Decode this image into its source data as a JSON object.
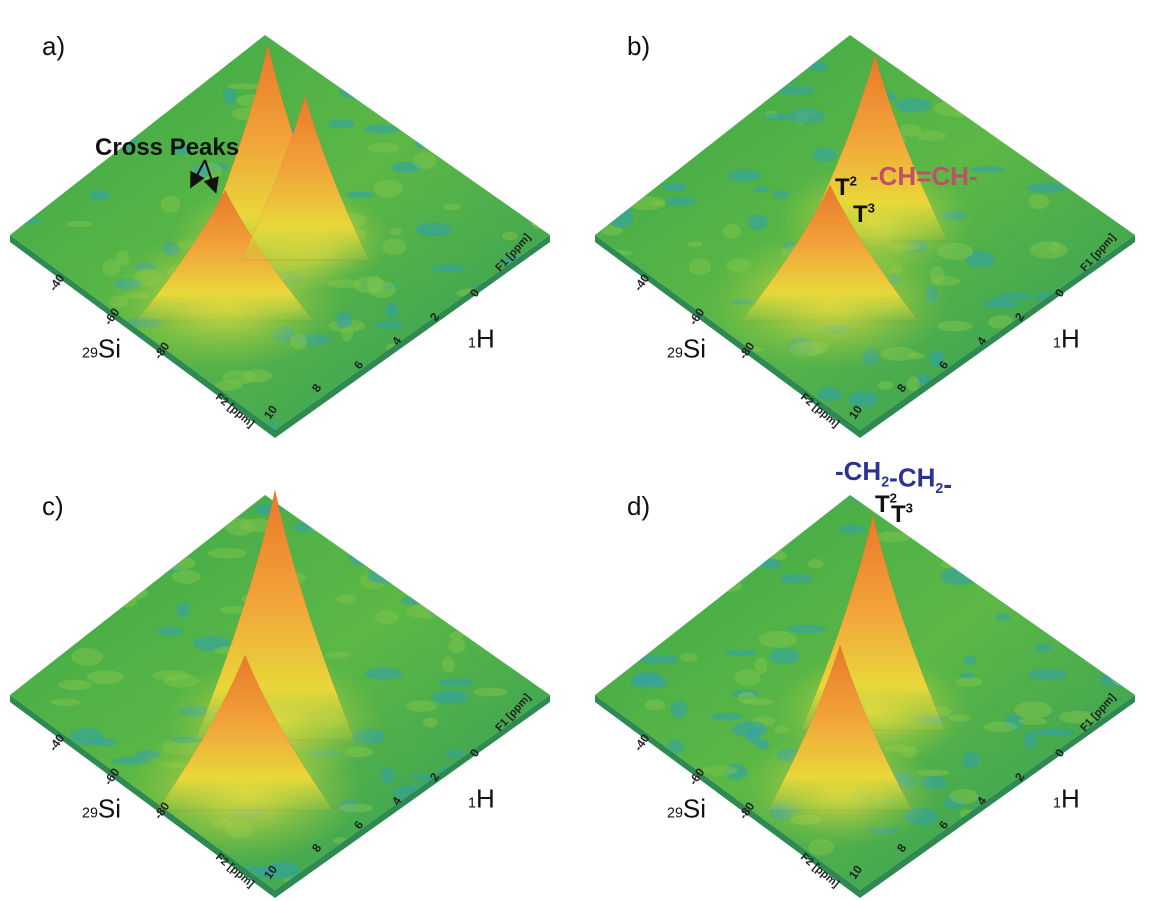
{
  "panels": [
    {
      "label": "a)",
      "si_ticks": [
        "-40",
        "-60",
        "-80"
      ],
      "h_ticks": [
        "10",
        "8",
        "6",
        "4",
        "2",
        "0"
      ],
      "f1": "F1 [ppm]",
      "f2": "F2 [ppm]",
      "si_axis": [
        {
          "sup": "29"
        },
        {
          "text": "Si"
        }
      ],
      "h_axis": [
        {
          "sup": "1"
        },
        {
          "text": "H"
        }
      ],
      "annotations": [
        [
          {
            "text": "Cross Peaks"
          }
        ]
      ]
    },
    {
      "label": "b)",
      "si_ticks": [
        "-40",
        "-60",
        "-80"
      ],
      "h_ticks": [
        "10",
        "8",
        "6",
        "4",
        "2",
        "0"
      ],
      "f1": "F1 [ppm]",
      "f2": "F2 [ppm]",
      "si_axis": [
        {
          "sup": "29"
        },
        {
          "text": "Si"
        }
      ],
      "h_axis": [
        {
          "sup": "1"
        },
        {
          "text": "H"
        }
      ],
      "annotations": [
        [
          {
            "text": "T"
          },
          {
            "sup": "2"
          }
        ],
        [
          {
            "text": "T"
          },
          {
            "sup": "3"
          }
        ],
        [
          {
            "text": "-CH=CH-"
          }
        ]
      ]
    },
    {
      "label": "c)",
      "si_ticks": [
        "-40",
        "-60",
        "-80"
      ],
      "h_ticks": [
        "10",
        "8",
        "6",
        "4",
        "2",
        "0"
      ],
      "f1": "F1 [ppm]",
      "f2": "F2 [ppm]",
      "si_axis": [
        {
          "sup": "29"
        },
        {
          "text": "Si"
        }
      ],
      "h_axis": [
        {
          "sup": "1"
        },
        {
          "text": "H"
        }
      ],
      "annotations": []
    },
    {
      "label": "d)",
      "si_ticks": [
        "-40",
        "-60",
        "-80"
      ],
      "h_ticks": [
        "10",
        "8",
        "6",
        "4",
        "2",
        "0"
      ],
      "f1": "F1 [ppm]",
      "f2": "F2 [ppm]",
      "si_axis": [
        {
          "sup": "29"
        },
        {
          "text": "Si"
        }
      ],
      "h_axis": [
        {
          "sup": "1"
        },
        {
          "text": "H"
        }
      ],
      "annotations": [
        [
          {
            "text": "-CH"
          },
          {
            "sub": "2"
          },
          {
            "text": "-CH"
          },
          {
            "sub": "2"
          },
          {
            "text": "-"
          }
        ],
        [
          {
            "text": "T"
          },
          {
            "sup": "2"
          }
        ],
        [
          {
            "text": "T"
          },
          {
            "sup": "3"
          }
        ]
      ]
    }
  ]
}
